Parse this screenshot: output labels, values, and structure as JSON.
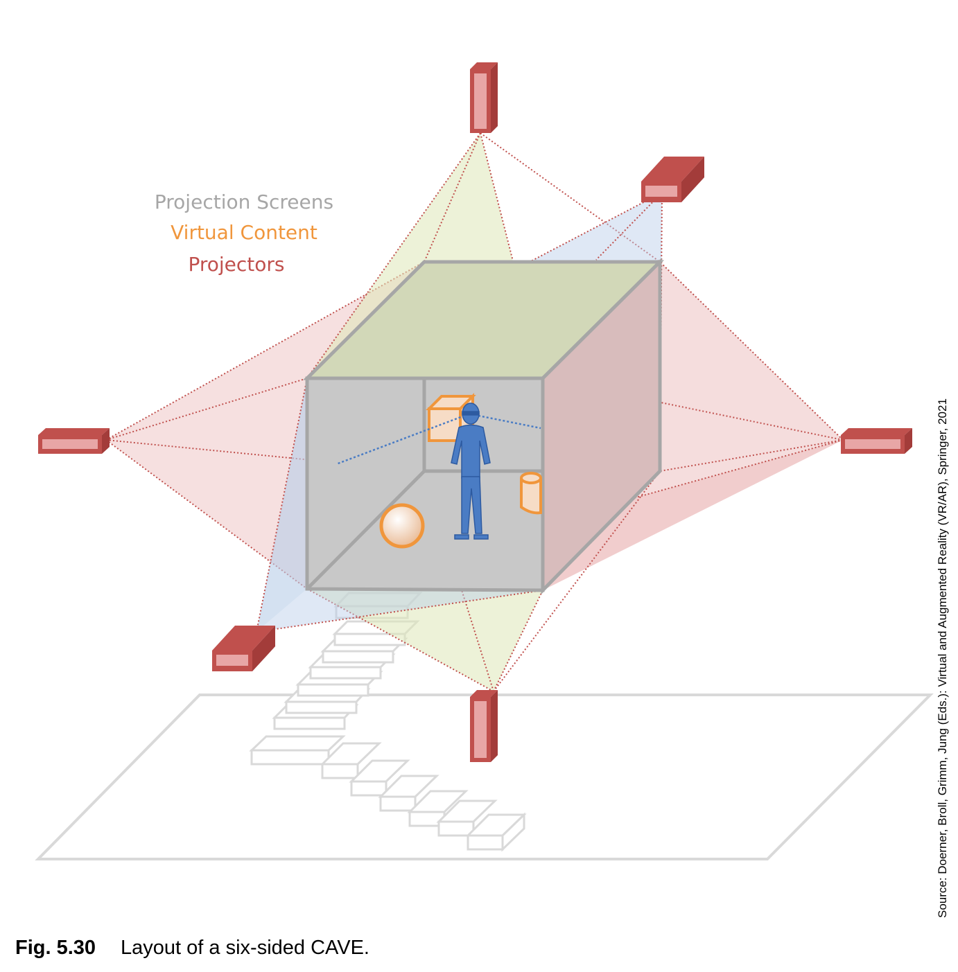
{
  "legend": {
    "screens_label": "Projection Screens",
    "content_label": "Virtual Content",
    "projectors_label": "Projectors"
  },
  "caption": {
    "label": "Fig. 5.30",
    "text": "Layout of a six-sided CAVE."
  },
  "source": "Source: Doerner, Broll, Grimm, Jung (Eds.): Virtual and Augmented Reality (VR/AR), Springer, 2021",
  "colors": {
    "screens": "#a6a6a6",
    "content": "#f0963c",
    "projectors": "#c0504d",
    "user": "#4a7cc4"
  },
  "icons": [
    "projector-icon",
    "person-icon",
    "box-icon",
    "sphere-icon",
    "cylinder-icon",
    "stairs-icon"
  ]
}
